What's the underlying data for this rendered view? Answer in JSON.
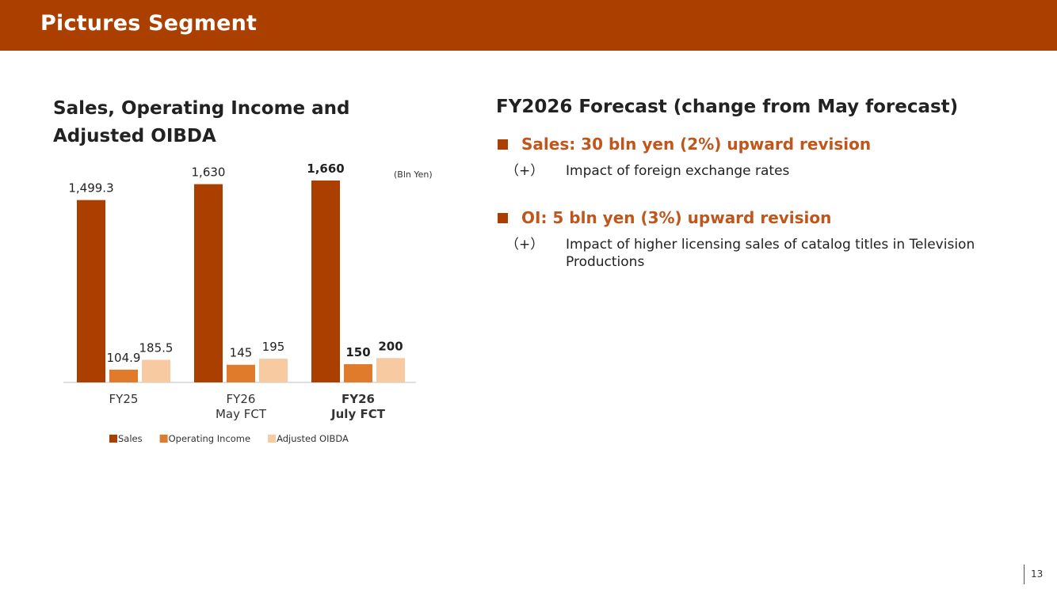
{
  "header": {
    "title": "Pictures Segment"
  },
  "chart_data": {
    "type": "bar",
    "title": "Sales, Operating Income and Adjusted OIBDA",
    "unit": "(Bln Yen)",
    "categories": [
      {
        "line1": "FY25",
        "line2": "",
        "bold": false
      },
      {
        "line1": "FY26",
        "line2": "May FCT",
        "bold": false
      },
      {
        "line1": "FY26",
        "line2": "July FCT",
        "bold": true
      }
    ],
    "series": [
      {
        "name": "Sales",
        "color": "#ab3f00",
        "values": [
          1499.3,
          1630,
          1660
        ],
        "labels": [
          "1,499.3",
          "1,630",
          "1,660"
        ]
      },
      {
        "name": "Operating Income",
        "color": "#e07b2c",
        "values": [
          104.9,
          145,
          150
        ],
        "labels": [
          "104.9",
          "145",
          "150"
        ]
      },
      {
        "name": "Adjusted OIBDA",
        "color": "#f8caa1",
        "values": [
          185.5,
          195,
          200
        ],
        "labels": [
          "185.5",
          "195",
          "200"
        ]
      }
    ],
    "legend_position": "bottom",
    "grid": false
  },
  "forecast": {
    "heading": "FY2026 Forecast (change from May forecast)",
    "points": [
      {
        "headline": "Sales: 30 bln yen (2%) upward revision",
        "mark": "（+）",
        "detail": "Impact of foreign exchange rates"
      },
      {
        "headline": "OI: 5 bln yen (3%) upward revision",
        "mark": "（+）",
        "detail": "Impact of higher licensing sales of catalog titles in Television Productions"
      }
    ]
  },
  "footer": {
    "page_number": "13"
  }
}
